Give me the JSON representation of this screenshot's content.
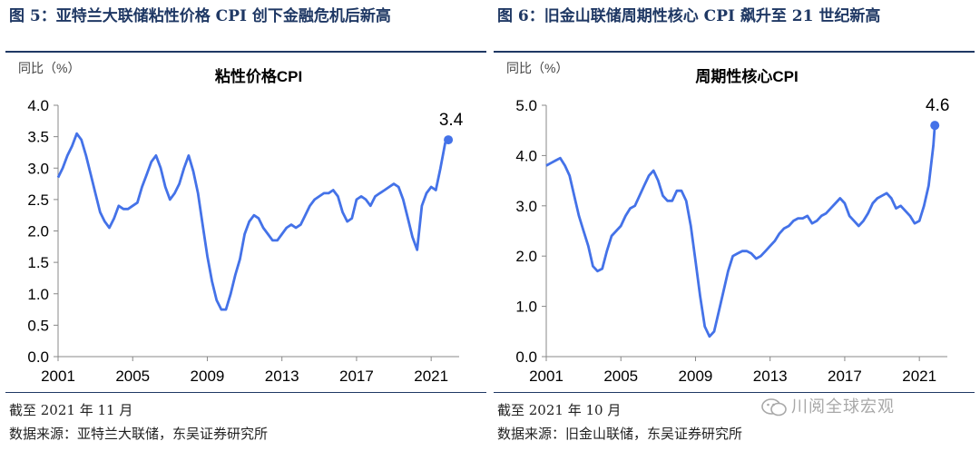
{
  "panels": [
    {
      "figure_title": "图 5：亚特兰大联储粘性价格 CPI 创下金融危机后新高",
      "date_note": "截至 2021 年 11 月",
      "source_note": "数据来源：亚特兰大联储，东吴证券研究所",
      "chart_data": {
        "type": "line",
        "title": "粘性价格CPI",
        "ylabel": "同比（%）",
        "xlabel": "",
        "ylim": [
          0.0,
          4.0
        ],
        "yticks": [
          "0.0",
          "0.5",
          "1.0",
          "1.5",
          "2.0",
          "2.5",
          "3.0",
          "3.5",
          "4.0"
        ],
        "xlim": [
          2001.0,
          2022.5
        ],
        "xticks": [
          "2001",
          "2005",
          "2009",
          "2013",
          "2017",
          "2021"
        ],
        "grid": false,
        "legend": "none",
        "line_color": "#4472e8",
        "end_label": "3.4",
        "series": [
          {
            "x": [
              2001.0,
              2001.25,
              2001.5,
              2001.75,
              2002.0,
              2002.25,
              2002.5,
              2002.75,
              2003.0,
              2003.25,
              2003.5,
              2003.75,
              2004.0,
              2004.25,
              2004.5,
              2004.75,
              2005.0,
              2005.25,
              2005.5,
              2005.75,
              2006.0,
              2006.25,
              2006.5,
              2006.75,
              2007.0,
              2007.25,
              2007.5,
              2007.75,
              2008.0,
              2008.25,
              2008.5,
              2008.75,
              2009.0,
              2009.25,
              2009.5,
              2009.75,
              2010.0,
              2010.25,
              2010.5,
              2010.75,
              2011.0,
              2011.25,
              2011.5,
              2011.75,
              2012.0,
              2012.25,
              2012.5,
              2012.75,
              2013.0,
              2013.25,
              2013.5,
              2013.75,
              2014.0,
              2014.25,
              2014.5,
              2014.75,
              2015.0,
              2015.25,
              2015.5,
              2015.75,
              2016.0,
              2016.25,
              2016.5,
              2016.75,
              2017.0,
              2017.25,
              2017.5,
              2017.75,
              2018.0,
              2018.25,
              2018.5,
              2018.75,
              2019.0,
              2019.25,
              2019.5,
              2019.75,
              2020.0,
              2020.25,
              2020.5,
              2020.75,
              2021.0,
              2021.25,
              2021.5,
              2021.75,
              2021.92
            ],
            "values": [
              2.85,
              3.0,
              3.2,
              3.35,
              3.55,
              3.45,
              3.2,
              2.9,
              2.6,
              2.3,
              2.15,
              2.05,
              2.2,
              2.4,
              2.35,
              2.35,
              2.4,
              2.45,
              2.7,
              2.9,
              3.1,
              3.2,
              3.0,
              2.7,
              2.5,
              2.6,
              2.75,
              3.0,
              3.2,
              2.95,
              2.6,
              2.1,
              1.6,
              1.2,
              0.9,
              0.75,
              0.75,
              1.0,
              1.3,
              1.55,
              1.95,
              2.15,
              2.25,
              2.2,
              2.05,
              1.95,
              1.85,
              1.85,
              1.95,
              2.05,
              2.1,
              2.05,
              2.1,
              2.25,
              2.4,
              2.5,
              2.55,
              2.6,
              2.6,
              2.65,
              2.55,
              2.3,
              2.15,
              2.2,
              2.5,
              2.55,
              2.5,
              2.4,
              2.55,
              2.6,
              2.65,
              2.7,
              2.75,
              2.7,
              2.5,
              2.2,
              1.9,
              1.7,
              2.4,
              2.6,
              2.7,
              2.65,
              3.0,
              3.4,
              3.45
            ]
          }
        ]
      }
    },
    {
      "figure_title": "图 6：旧金山联储周期性核心 CPI 飙升至 21 世纪新高",
      "date_note": "截至 2021 年 10 月",
      "source_note": "数据来源：旧金山联储，东吴证券研究所",
      "chart_data": {
        "type": "line",
        "title": "周期性核心CPI",
        "ylabel": "同比（%）",
        "xlabel": "",
        "ylim": [
          0.0,
          5.0
        ],
        "yticks": [
          "0.0",
          "1.0",
          "2.0",
          "3.0",
          "4.0",
          "5.0"
        ],
        "xlim": [
          2001.0,
          2022.5
        ],
        "xticks": [
          "2001",
          "2005",
          "2009",
          "2013",
          "2017",
          "2021"
        ],
        "grid": false,
        "legend": "none",
        "line_color": "#4472e8",
        "end_label": "4.6",
        "series": [
          {
            "x": [
              2001.0,
              2001.25,
              2001.5,
              2001.75,
              2002.0,
              2002.25,
              2002.5,
              2002.75,
              2003.0,
              2003.25,
              2003.5,
              2003.75,
              2004.0,
              2004.25,
              2004.5,
              2004.75,
              2005.0,
              2005.25,
              2005.5,
              2005.75,
              2006.0,
              2006.25,
              2006.5,
              2006.75,
              2007.0,
              2007.25,
              2007.5,
              2007.75,
              2008.0,
              2008.25,
              2008.5,
              2008.75,
              2009.0,
              2009.25,
              2009.5,
              2009.75,
              2010.0,
              2010.25,
              2010.5,
              2010.75,
              2011.0,
              2011.25,
              2011.5,
              2011.75,
              2012.0,
              2012.25,
              2012.5,
              2012.75,
              2013.0,
              2013.25,
              2013.5,
              2013.75,
              2014.0,
              2014.25,
              2014.5,
              2014.75,
              2015.0,
              2015.25,
              2015.5,
              2015.75,
              2016.0,
              2016.25,
              2016.5,
              2016.75,
              2017.0,
              2017.25,
              2017.5,
              2017.75,
              2018.0,
              2018.25,
              2018.5,
              2018.75,
              2019.0,
              2019.25,
              2019.5,
              2019.75,
              2020.0,
              2020.25,
              2020.5,
              2020.75,
              2021.0,
              2021.25,
              2021.5,
              2021.75,
              2021.83
            ],
            "values": [
              3.8,
              3.85,
              3.9,
              3.95,
              3.8,
              3.6,
              3.2,
              2.8,
              2.5,
              2.2,
              1.8,
              1.7,
              1.75,
              2.1,
              2.4,
              2.5,
              2.6,
              2.8,
              2.95,
              3.0,
              3.2,
              3.4,
              3.6,
              3.7,
              3.5,
              3.2,
              3.1,
              3.1,
              3.3,
              3.3,
              3.1,
              2.6,
              1.9,
              1.2,
              0.6,
              0.4,
              0.5,
              0.9,
              1.3,
              1.7,
              2.0,
              2.05,
              2.1,
              2.1,
              2.05,
              1.95,
              2.0,
              2.1,
              2.2,
              2.3,
              2.45,
              2.55,
              2.6,
              2.7,
              2.75,
              2.75,
              2.8,
              2.65,
              2.7,
              2.8,
              2.85,
              2.95,
              3.05,
              3.15,
              3.05,
              2.8,
              2.7,
              2.6,
              2.7,
              2.85,
              3.05,
              3.15,
              3.2,
              3.25,
              3.15,
              2.95,
              3.0,
              2.9,
              2.8,
              2.65,
              2.7,
              3.0,
              3.4,
              4.2,
              4.6
            ]
          }
        ]
      }
    }
  ],
  "watermark": {
    "icon": "wechat-icon",
    "text": "川阅全球宏观"
  }
}
